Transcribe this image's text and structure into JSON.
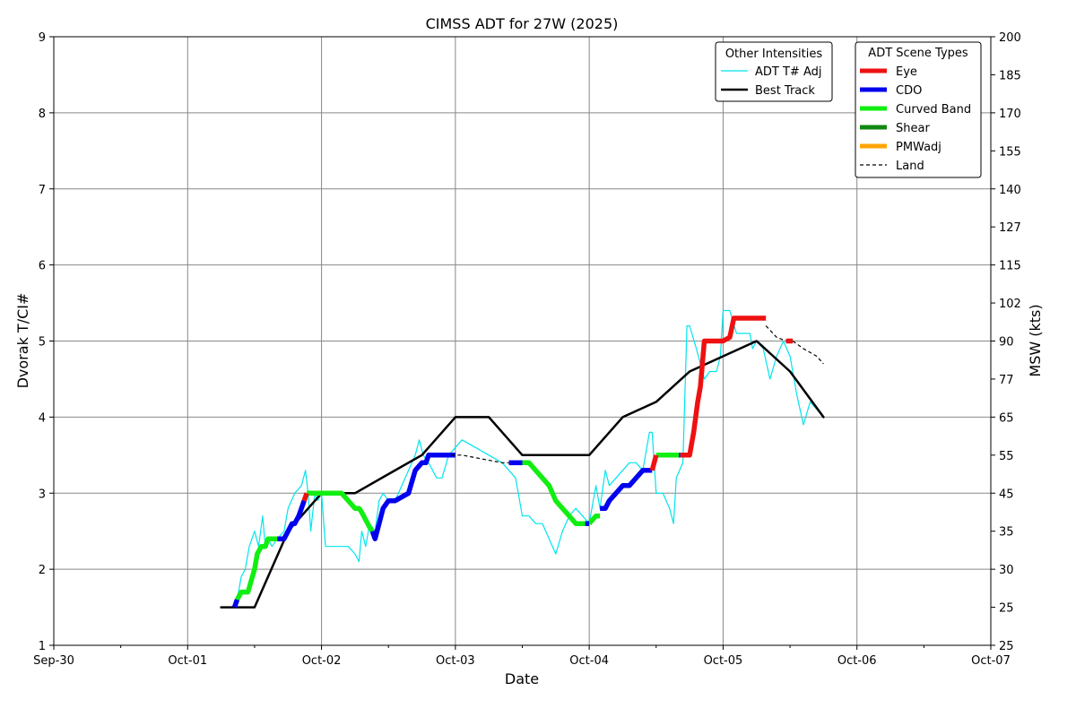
{
  "chart_data": {
    "type": "line",
    "title": "CIMSS ADT for 27W (2025)",
    "xlabel": "Date",
    "ylabel": "Dvorak T/CI#",
    "y2label": "MSW (kts)",
    "xlim": [
      "2025-09-30",
      "2025-10-07"
    ],
    "xticks": [
      "Sep-30",
      "Oct-01",
      "Oct-02",
      "Oct-03",
      "Oct-04",
      "Oct-05",
      "Oct-06",
      "Oct-07"
    ],
    "ylim": [
      1,
      9
    ],
    "yticks": [
      1,
      2,
      3,
      4,
      5,
      6,
      7,
      8,
      9
    ],
    "y2ticks": [
      {
        "ci": 1.0,
        "label": "25"
      },
      {
        "ci": 1.5,
        "label": "25"
      },
      {
        "ci": 2.0,
        "label": "30"
      },
      {
        "ci": 2.5,
        "label": "35"
      },
      {
        "ci": 3.0,
        "label": "45"
      },
      {
        "ci": 3.5,
        "label": "55"
      },
      {
        "ci": 4.0,
        "label": "65"
      },
      {
        "ci": 4.5,
        "label": "77"
      },
      {
        "ci": 5.0,
        "label": "90"
      },
      {
        "ci": 5.5,
        "label": "102"
      },
      {
        "ci": 6.0,
        "label": "115"
      },
      {
        "ci": 6.5,
        "label": "127"
      },
      {
        "ci": 7.0,
        "label": "140"
      },
      {
        "ci": 7.5,
        "label": "155"
      },
      {
        "ci": 8.0,
        "label": "170"
      },
      {
        "ci": 8.5,
        "label": "185"
      },
      {
        "ci": 9.0,
        "label": "200"
      }
    ],
    "grid": true,
    "legends": [
      {
        "title": "Other Intensities",
        "placement": "top-right",
        "entries": [
          {
            "label": "ADT T# Adj",
            "color": "#00e5ee",
            "style": "thin"
          },
          {
            "label": "Best Track",
            "color": "#000000",
            "style": "solid"
          }
        ]
      },
      {
        "title": "ADT Scene Types",
        "placement": "top-right",
        "entries": [
          {
            "label": "Eye",
            "color": "#ee1111",
            "style": "thick"
          },
          {
            "label": "CDO",
            "color": "#0000ee",
            "style": "thick"
          },
          {
            "label": "Curved Band",
            "color": "#11ee11",
            "style": "thick"
          },
          {
            "label": "Shear",
            "color": "#118811",
            "style": "thick"
          },
          {
            "label": "PMWadj",
            "color": "#ffa500",
            "style": "thick"
          },
          {
            "label": "Land",
            "color": "#000000",
            "style": "dashed"
          }
        ]
      }
    ],
    "series": [
      {
        "name": "Best Track",
        "color": "#000000",
        "x": [
          1.25,
          1.5,
          1.75,
          2.0,
          2.25,
          2.5,
          2.75,
          3.0,
          3.25,
          3.5,
          3.75,
          4.0,
          4.25,
          4.5,
          4.75,
          5.0,
          5.25,
          5.5,
          5.75
        ],
        "y": [
          1.5,
          1.5,
          2.5,
          3.0,
          3.0,
          3.25,
          3.5,
          4.0,
          4.0,
          3.5,
          3.5,
          3.5,
          4.0,
          4.2,
          4.6,
          4.8,
          5.0,
          4.6,
          4.0
        ]
      },
      {
        "name": "ADT T# Adj",
        "color": "#00e5ee",
        "x": [
          1.35,
          1.38,
          1.4,
          1.43,
          1.46,
          1.5,
          1.53,
          1.56,
          1.58,
          1.6,
          1.63,
          1.67,
          1.72,
          1.75,
          1.8,
          1.85,
          1.88,
          1.9,
          1.92,
          1.95,
          1.97,
          2.0,
          2.03,
          2.06,
          2.1,
          2.15,
          2.2,
          2.25,
          2.28,
          2.3,
          2.33,
          2.36,
          2.4,
          2.43,
          2.46,
          2.5,
          2.55,
          2.6,
          2.65,
          2.7,
          2.73,
          2.76,
          2.8,
          2.83,
          2.86,
          2.9,
          2.95,
          3.0,
          3.05,
          3.15,
          3.25,
          3.35,
          3.45,
          3.5,
          3.55,
          3.6,
          3.65,
          3.7,
          3.75,
          3.8,
          3.85,
          3.9,
          3.95,
          4.0,
          4.05,
          4.08,
          4.12,
          4.15,
          4.2,
          4.25,
          4.3,
          4.35,
          4.4,
          4.45,
          4.47,
          4.5,
          4.55,
          4.6,
          4.63,
          4.65,
          4.7,
          4.73,
          4.75,
          4.8,
          4.83,
          4.86,
          4.9,
          4.95,
          4.98,
          5.0,
          5.05,
          5.1,
          5.15,
          5.2,
          5.22,
          5.25,
          5.3,
          5.35,
          5.4,
          5.45,
          5.5,
          5.55,
          5.6,
          5.65,
          5.7,
          5.75
        ],
        "y": [
          1.5,
          1.7,
          1.9,
          2.0,
          2.3,
          2.5,
          2.3,
          2.7,
          2.3,
          2.4,
          2.3,
          2.4,
          2.5,
          2.8,
          3.0,
          3.1,
          3.3,
          3.0,
          2.5,
          3.0,
          2.9,
          3.0,
          2.3,
          2.3,
          2.3,
          2.3,
          2.3,
          2.2,
          2.1,
          2.5,
          2.3,
          2.6,
          2.5,
          2.9,
          3.0,
          2.9,
          2.9,
          3.1,
          3.3,
          3.5,
          3.7,
          3.5,
          3.4,
          3.3,
          3.2,
          3.2,
          3.5,
          3.6,
          3.7,
          3.6,
          3.5,
          3.4,
          3.2,
          2.7,
          2.7,
          2.6,
          2.6,
          2.4,
          2.2,
          2.5,
          2.7,
          2.8,
          2.7,
          2.6,
          3.1,
          2.8,
          3.3,
          3.1,
          3.2,
          3.3,
          3.4,
          3.4,
          3.3,
          3.8,
          3.8,
          3.0,
          3.0,
          2.8,
          2.6,
          3.2,
          3.4,
          5.2,
          5.2,
          4.9,
          4.7,
          4.5,
          4.6,
          4.6,
          4.8,
          5.4,
          5.4,
          5.1,
          5.1,
          5.1,
          4.9,
          5.0,
          4.9,
          4.5,
          4.8,
          5.0,
          4.8,
          4.3,
          3.9,
          4.2,
          4.1,
          4.0
        ]
      },
      {
        "name": "Curved Band",
        "color": "#11ee11",
        "x": [
          1.37,
          1.4,
          1.45,
          1.5,
          1.52,
          1.55,
          1.58,
          1.6,
          1.63,
          1.67
        ],
        "y": [
          1.6,
          1.7,
          1.7,
          2.0,
          2.2,
          2.3,
          2.3,
          2.4,
          2.4,
          2.4
        ]
      },
      {
        "name": "CDO",
        "color": "#0000ee",
        "x": [
          1.35,
          1.37
        ],
        "y": [
          1.5,
          1.6
        ]
      },
      {
        "name": "CDO",
        "color": "#0000ee",
        "x": [
          1.67,
          1.72,
          1.75,
          1.78,
          1.8,
          1.83,
          1.87
        ],
        "y": [
          2.4,
          2.4,
          2.5,
          2.6,
          2.6,
          2.7,
          2.9
        ]
      },
      {
        "name": "Eye",
        "color": "#ee1111",
        "x": [
          1.87,
          1.89
        ],
        "y": [
          2.9,
          3.0
        ]
      },
      {
        "name": "Curved Band",
        "color": "#11ee11",
        "x": [
          1.89,
          2.0,
          2.15,
          2.2,
          2.25,
          2.28,
          2.3,
          2.33,
          2.36,
          2.38
        ],
        "y": [
          3.0,
          3.0,
          3.0,
          2.9,
          2.8,
          2.8,
          2.75,
          2.65,
          2.55,
          2.5
        ]
      },
      {
        "name": "CDO",
        "color": "#0000ee",
        "x": [
          2.38,
          2.4,
          2.43,
          2.46,
          2.5,
          2.55,
          2.65,
          2.7,
          2.75,
          2.78,
          2.8,
          2.85,
          2.9,
          2.95,
          3.0
        ],
        "y": [
          2.5,
          2.4,
          2.6,
          2.8,
          2.9,
          2.9,
          3.0,
          3.3,
          3.4,
          3.4,
          3.5,
          3.5,
          3.5,
          3.5,
          3.5
        ]
      },
      {
        "name": "CDO",
        "color": "#0000ee",
        "x": [
          3.4,
          3.5
        ],
        "y": [
          3.4,
          3.4
        ]
      },
      {
        "name": "Curved Band",
        "color": "#11ee11",
        "x": [
          3.5,
          3.55,
          3.6,
          3.65,
          3.7,
          3.75,
          3.8,
          3.85,
          3.9,
          3.95,
          4.0
        ],
        "y": [
          3.4,
          3.4,
          3.3,
          3.2,
          3.1,
          2.9,
          2.8,
          2.7,
          2.6,
          2.6,
          2.6
        ]
      },
      {
        "name": "CDO",
        "color": "#0000ee",
        "x": [
          3.97,
          4.0
        ],
        "y": [
          2.6,
          2.6
        ]
      },
      {
        "name": "Curved Band",
        "color": "#11ee11",
        "x": [
          4.0,
          4.05,
          4.08
        ],
        "y": [
          2.6,
          2.7,
          2.7
        ]
      },
      {
        "name": "CDO",
        "color": "#0000ee",
        "x": [
          4.08,
          4.12,
          4.15,
          4.2,
          4.25,
          4.3,
          4.35,
          4.4,
          4.45,
          4.47
        ],
        "y": [
          2.8,
          2.8,
          2.9,
          3.0,
          3.1,
          3.1,
          3.2,
          3.3,
          3.3,
          3.3
        ]
      },
      {
        "name": "Eye",
        "color": "#ee1111",
        "x": [
          4.47,
          4.5
        ],
        "y": [
          3.3,
          3.5
        ]
      },
      {
        "name": "Curved Band",
        "color": "#11ee11",
        "x": [
          4.5,
          4.6,
          4.67
        ],
        "y": [
          3.5,
          3.5,
          3.5
        ]
      },
      {
        "name": "CDO",
        "color": "#0000ee",
        "x": [
          4.67,
          4.68
        ],
        "y": [
          3.5,
          3.5
        ]
      },
      {
        "name": "Eye",
        "color": "#ee1111",
        "x": [
          4.68,
          4.75,
          4.78,
          4.81,
          4.83,
          4.86,
          4.9,
          5.0,
          5.05,
          5.08,
          5.15,
          5.2,
          5.25,
          5.3,
          5.32
        ],
        "y": [
          3.5,
          3.5,
          3.8,
          4.2,
          4.4,
          5.0,
          5.0,
          5.0,
          5.05,
          5.3,
          5.3,
          5.3,
          5.3,
          5.3,
          5.3
        ]
      },
      {
        "name": "Land",
        "color": "#000000",
        "dashed": true,
        "x": [
          2.97,
          3.05,
          3.2,
          3.35,
          3.4
        ],
        "y": [
          3.5,
          3.5,
          3.45,
          3.4,
          3.4
        ]
      },
      {
        "name": "Land",
        "color": "#000000",
        "dashed": true,
        "x": [
          5.32,
          5.4,
          5.47
        ],
        "y": [
          5.2,
          5.05,
          5.0
        ]
      },
      {
        "name": "Eye",
        "color": "#ee1111",
        "x": [
          5.47,
          5.52
        ],
        "y": [
          5.0,
          5.0
        ]
      },
      {
        "name": "Land",
        "color": "#000000",
        "dashed": true,
        "x": [
          5.52,
          5.6,
          5.7,
          5.75
        ],
        "y": [
          5.0,
          4.9,
          4.8,
          4.7
        ]
      }
    ]
  }
}
